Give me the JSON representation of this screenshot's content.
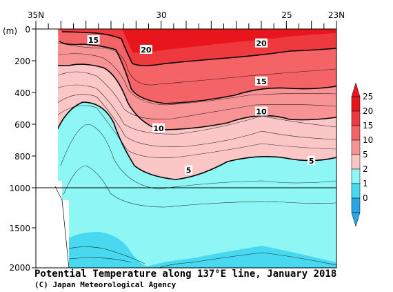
{
  "chart_data": {
    "type": "contour",
    "title": "Potential Temperature along 137°E line, January 2018",
    "credit": "(C) Japan Meteorological Agency",
    "x_axis": {
      "ticks": [
        {
          "lat": 35,
          "label": "35N"
        },
        {
          "lat": 30,
          "label": "30"
        },
        {
          "lat": 25,
          "label": "25"
        },
        {
          "lat": 23,
          "label": "23N"
        }
      ],
      "range": [
        35,
        23
      ]
    },
    "y_axis": {
      "unit_label": "(m)",
      "ticks": [
        "0",
        "200",
        "400",
        "600",
        "800",
        "1000",
        "1500",
        "2000"
      ],
      "range": [
        0,
        2000
      ],
      "scale_break_at": 1000,
      "upper_scale": [
        0,
        1000
      ],
      "lower_scale": [
        1000,
        2000
      ]
    },
    "colorbar": {
      "levels": [
        "25",
        "20",
        "15",
        "10",
        "5",
        "2",
        "1",
        "0"
      ],
      "colors": [
        "#e8161c",
        "#ee3a3e",
        "#f46466",
        "#f89395",
        "#fbc6c6",
        "#8ff6f6",
        "#48d8f0",
        "#2ba6e4"
      ]
    },
    "contour_labels": [
      {
        "text": "15",
        "lat": 32.7,
        "depth": 70
      },
      {
        "text": "20",
        "lat": 30.6,
        "depth": 130
      },
      {
        "text": "20",
        "lat": 26.0,
        "depth": 90
      },
      {
        "text": "15",
        "lat": 26.0,
        "depth": 330
      },
      {
        "text": "10",
        "lat": 26.0,
        "depth": 520
      },
      {
        "text": "10",
        "lat": 30.1,
        "depth": 625
      },
      {
        "text": "5",
        "lat": 28.9,
        "depth": 890
      },
      {
        "text": "5",
        "lat": 24.0,
        "depth": 830
      }
    ]
  }
}
